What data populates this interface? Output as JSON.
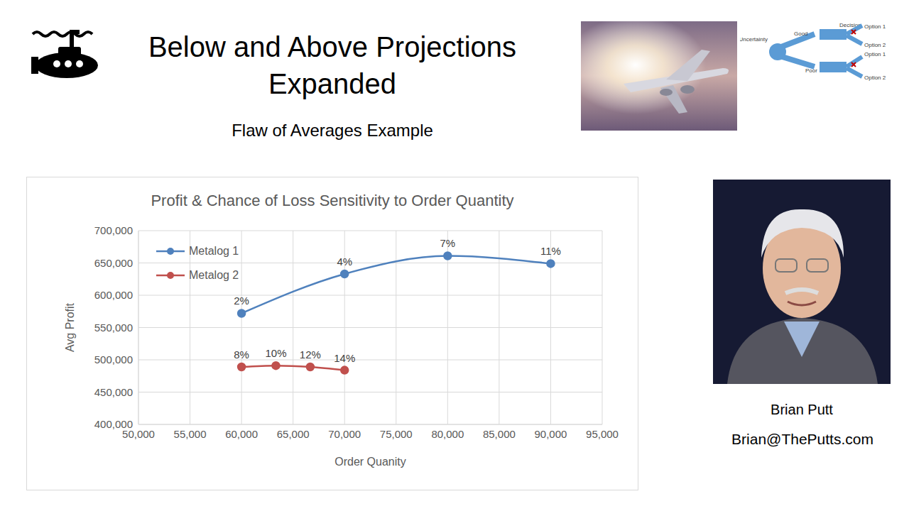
{
  "slide": {
    "title": "Below and Above Projections Expanded",
    "subtitle": "Flaw of Averages Example",
    "presenter": {
      "name": "Brian Putt",
      "email": "Brian@ThePutts.com"
    },
    "decision_tree": {
      "uncertainty": "Uncertainty",
      "branches": [
        {
          "label": "Good",
          "decision": "Decision",
          "options": [
            "Option 1",
            "Option 2"
          ]
        },
        {
          "label": "Poor",
          "options": [
            "Option 1",
            "Option 2"
          ]
        }
      ]
    }
  },
  "chart_data": {
    "type": "line",
    "title": "Profit & Chance of Loss Sensitivity to Order Quantity",
    "x_label": "Order Quanity",
    "y_label": "Avg Profit",
    "xlim": [
      50000,
      95000
    ],
    "xticks": [
      {
        "value": 50000,
        "label": "50,000"
      },
      {
        "value": 55000,
        "label": "55,000"
      },
      {
        "value": 60000,
        "label": "60,000"
      },
      {
        "value": 65000,
        "label": "65,000"
      },
      {
        "value": 70000,
        "label": "70,000"
      },
      {
        "value": 75000,
        "label": "75,000"
      },
      {
        "value": 80000,
        "label": "80,000"
      },
      {
        "value": 85000,
        "label": "85,000"
      },
      {
        "value": 90000,
        "label": "90,000"
      },
      {
        "value": 95000,
        "label": "95,000"
      }
    ],
    "ylim": [
      400000,
      700000
    ],
    "yticks": [
      {
        "value": 400000,
        "label": "400,000"
      },
      {
        "value": 450000,
        "label": "450,000"
      },
      {
        "value": 500000,
        "label": "500,000"
      },
      {
        "value": 550000,
        "label": "550,000"
      },
      {
        "value": 600000,
        "label": "600,000"
      },
      {
        "value": 650000,
        "label": "650,000"
      },
      {
        "value": 700000,
        "label": "700,000"
      }
    ],
    "grid": true,
    "legend": "upper left",
    "marker": "circle",
    "line_style": "smooth",
    "series": [
      {
        "name": "Metalog 1",
        "color": "#4f81bd",
        "x": [
          60000,
          70000,
          80000,
          90000
        ],
        "values": [
          572000,
          633000,
          661000,
          649000
        ],
        "point_labels": [
          "2%",
          "4%",
          "7%",
          "11%"
        ]
      },
      {
        "name": "Metalog 2",
        "color": "#c0504d",
        "x": [
          60000,
          63333,
          66667,
          70000
        ],
        "values": [
          489000,
          491000,
          489000,
          484000
        ],
        "point_labels": [
          "8%",
          "10%",
          "12%",
          "14%"
        ]
      }
    ]
  }
}
